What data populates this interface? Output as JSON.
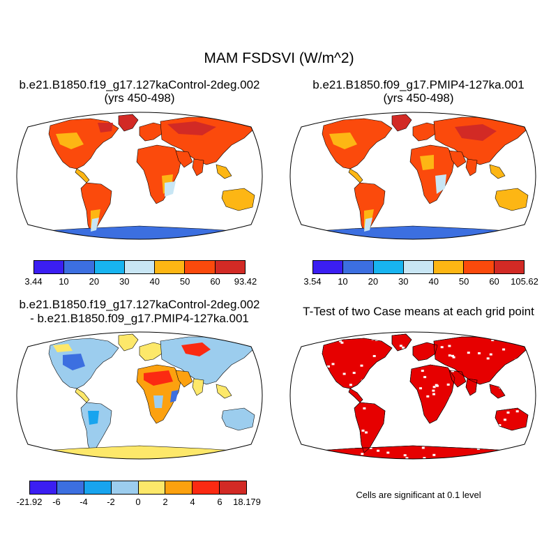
{
  "title": "MAM FSDSVI (W/m^2)",
  "panels": {
    "p1": {
      "title1": "b.e21.B1850.f19_g17.127kaControl-2deg.002",
      "title2": "(yrs 450-498)"
    },
    "p2": {
      "title1": "b.e21.B1850.f09_g17.PMIP4-127ka.001",
      "title2": "(yrs 450-498)"
    },
    "p3": {
      "title1": "b.e21.B1850.f19_g17.127kaControl-2deg.002",
      "title2": "- b.e21.B1850.f09_g17.PMIP4-127ka.001"
    },
    "p4": {
      "title1": "T-Test of two Case means at each grid point",
      "note": "Cells are significant at 0.1 level"
    }
  },
  "colorbars": {
    "cb1": {
      "labels": [
        "3.44",
        "10",
        "20",
        "30",
        "40",
        "50",
        "60",
        "93.42"
      ],
      "colors": [
        "#3b1ef2",
        "#3c6fe0",
        "#18b4f0",
        "#c8e6f4",
        "#fdb614",
        "#fb4a0c",
        "#d22a25"
      ]
    },
    "cb2": {
      "labels": [
        "3.54",
        "10",
        "20",
        "30",
        "40",
        "50",
        "60",
        "105.62"
      ],
      "colors": [
        "#3b1ef2",
        "#3c6fe0",
        "#18b4f0",
        "#c8e6f4",
        "#fdb614",
        "#fb4a0c",
        "#d22a25"
      ]
    },
    "cb3": {
      "labels": [
        "-21.92",
        "-6",
        "-4",
        "-2",
        "0",
        "2",
        "4",
        "6",
        "18.179"
      ],
      "colors": [
        "#3b1ef2",
        "#3c6fe0",
        "#18a4ee",
        "#9ccdee",
        "#fde86a",
        "#fca10f",
        "#fb2a12",
        "#d22a25"
      ]
    }
  },
  "map_colors": {
    "ocean": "#ffffff",
    "ttest": "#e60000"
  }
}
